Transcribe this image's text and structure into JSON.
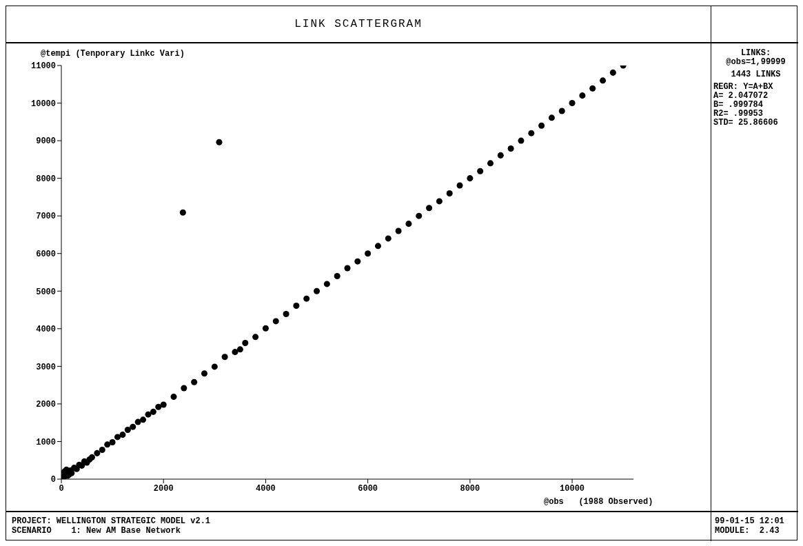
{
  "chart_data": {
    "type": "scatter",
    "title": "LINK SCATTERGRAM",
    "ylabel": "@tempi (Tenporary Linkc Vari)",
    "xlabel": "@obs   (1988 Observed)",
    "annotations": [
      "LINKS:",
      "@obs=1,99999",
      "1443 LINKS",
      "REGR: Y=A+BX",
      "A= 2.047072",
      "B= .999784",
      "R2= .99953",
      "STD= 25.86606",
      "PROJECT: WELLINGTON STRATEGIC MODEL v2.1",
      "SCENARIO    1: New AM Base Network",
      "99-01-15 12:01",
      "MODULE:  2.43"
    ],
    "x": [
      20,
      40,
      60,
      100,
      120,
      150,
      180,
      200,
      250,
      300,
      350,
      400,
      450,
      500,
      550,
      600,
      700,
      800,
      900,
      1000,
      1100,
      1200,
      1300,
      1400,
      1500,
      1600,
      1700,
      1800,
      1900,
      2000,
      2200,
      2400,
      2600,
      2800,
      3000,
      3200,
      3400,
      3500,
      3600,
      3800,
      4000,
      4200,
      4400,
      4600,
      4800,
      5000,
      5200,
      5400,
      5600,
      5800,
      6000,
      6200,
      6400,
      6600,
      6800,
      7000,
      7200,
      7400,
      7600,
      7800,
      8000,
      8200,
      8400,
      8600,
      8800,
      9000,
      9200,
      9400,
      9600,
      9800,
      10000,
      10200,
      10400,
      10600,
      10800,
      11000,
      2380,
      3090
    ],
    "series": [
      {
        "color": "#000000",
        "values": [
          150,
          30,
          200,
          250,
          90,
          120,
          230,
          160,
          300,
          270,
          380,
          360,
          470,
          440,
          520,
          580,
          690,
          780,
          920,
          980,
          1120,
          1180,
          1310,
          1390,
          1520,
          1580,
          1720,
          1790,
          1920,
          1980,
          2190,
          2420,
          2580,
          2810,
          2990,
          3250,
          3380,
          3450,
          3620,
          3780,
          4010,
          4200,
          4390,
          4610,
          4800,
          5000,
          5190,
          5400,
          5610,
          5790,
          6000,
          6200,
          6400,
          6600,
          6790,
          7000,
          7210,
          7390,
          7600,
          7810,
          8000,
          8190,
          8400,
          8610,
          8790,
          9000,
          9200,
          9400,
          9610,
          9790,
          10000,
          10200,
          10390,
          10600,
          10810,
          11000,
          7090,
          8960
        ]
      }
    ],
    "xlim": [
      0,
      11200
    ],
    "xticks": [
      0,
      2000,
      4000,
      6000,
      8000,
      10000
    ],
    "ylim": [
      0,
      11000
    ],
    "yticks": [
      0,
      1000,
      2000,
      3000,
      4000,
      5000,
      6000,
      7000,
      8000,
      9000,
      10000,
      11000
    ],
    "grid": false,
    "legend": false,
    "marker": "circle"
  }
}
